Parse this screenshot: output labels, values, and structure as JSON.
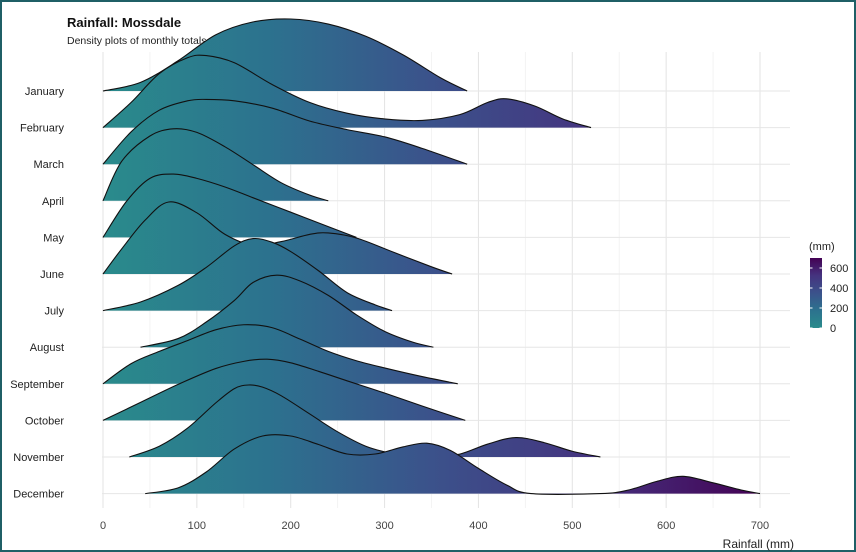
{
  "chart_data": {
    "type": "ridgeline",
    "title": "Rainfall: Mossdale",
    "subtitle": "Density plots of monthly totals, 2012-2020",
    "xlabel": "Rainfall (mm)",
    "ylabel": "",
    "xlim": [
      0,
      700
    ],
    "x_ticks": [
      0,
      100,
      200,
      300,
      400,
      500,
      600,
      700
    ],
    "grid": true,
    "legend": {
      "title": "(mm)",
      "placement": "right",
      "ticks": [
        600,
        400,
        200,
        0
      ],
      "color_range": [
        0,
        700
      ],
      "colors": [
        "#2a8b8c",
        "#2c728e",
        "#3b528b",
        "#45337f",
        "#440154"
      ]
    },
    "categories": [
      "January",
      "February",
      "March",
      "April",
      "May",
      "June",
      "July",
      "August",
      "September",
      "October",
      "November",
      "December"
    ],
    "series": [
      {
        "name": "January",
        "x": [
          0,
          40,
          80,
          120,
          160,
          200,
          240,
          280,
          320,
          360,
          388
        ],
        "density": [
          0.0,
          0.12,
          0.42,
          0.78,
          0.96,
          1.0,
          0.93,
          0.76,
          0.5,
          0.18,
          0.0
        ]
      },
      {
        "name": "February",
        "x": [
          0,
          30,
          60,
          90,
          110,
          140,
          180,
          220,
          260,
          300,
          340,
          380,
          410,
          430,
          460,
          490,
          520
        ],
        "density": [
          0.0,
          0.35,
          0.75,
          0.97,
          1.0,
          0.9,
          0.6,
          0.35,
          0.2,
          0.12,
          0.1,
          0.18,
          0.35,
          0.4,
          0.3,
          0.12,
          0.0
        ]
      },
      {
        "name": "March",
        "x": [
          0,
          30,
          60,
          90,
          110,
          140,
          180,
          220,
          260,
          300,
          340,
          388
        ],
        "density": [
          0.0,
          0.45,
          0.75,
          0.88,
          0.9,
          0.88,
          0.78,
          0.6,
          0.48,
          0.38,
          0.22,
          0.0
        ]
      },
      {
        "name": "April",
        "x": [
          0,
          20,
          50,
          75,
          100,
          130,
          160,
          190,
          220,
          240
        ],
        "density": [
          0.0,
          0.55,
          0.9,
          1.0,
          0.95,
          0.75,
          0.5,
          0.25,
          0.08,
          0.0
        ]
      },
      {
        "name": "May",
        "x": [
          0,
          25,
          50,
          75,
          100,
          130,
          160,
          200,
          240,
          270
        ],
        "density": [
          0.0,
          0.5,
          0.82,
          0.88,
          0.82,
          0.7,
          0.55,
          0.35,
          0.15,
          0.0
        ]
      },
      {
        "name": "June",
        "x": [
          0,
          20,
          45,
          70,
          100,
          130,
          160,
          190,
          220,
          240,
          270,
          310,
          350,
          372
        ],
        "density": [
          0.0,
          0.35,
          0.75,
          1.0,
          0.85,
          0.55,
          0.4,
          0.45,
          0.55,
          0.57,
          0.5,
          0.3,
          0.1,
          0.0
        ]
      },
      {
        "name": "July",
        "x": [
          0,
          40,
          80,
          110,
          140,
          160,
          180,
          200,
          230,
          260,
          290,
          308
        ],
        "density": [
          0.0,
          0.12,
          0.35,
          0.6,
          0.9,
          1.0,
          0.95,
          0.82,
          0.55,
          0.25,
          0.08,
          0.0
        ]
      },
      {
        "name": "August",
        "x": [
          40,
          80,
          110,
          140,
          160,
          185,
          210,
          240,
          270,
          300,
          330,
          352
        ],
        "density": [
          0.0,
          0.12,
          0.35,
          0.65,
          0.9,
          1.0,
          0.92,
          0.72,
          0.45,
          0.22,
          0.07,
          0.0
        ]
      },
      {
        "name": "September",
        "x": [
          0,
          30,
          60,
          90,
          120,
          150,
          180,
          210,
          240,
          270,
          300,
          340,
          378
        ],
        "density": [
          0.0,
          0.28,
          0.45,
          0.6,
          0.75,
          0.82,
          0.78,
          0.62,
          0.45,
          0.32,
          0.22,
          0.1,
          0.0
        ]
      },
      {
        "name": "October",
        "x": [
          0,
          40,
          80,
          120,
          150,
          175,
          200,
          230,
          260,
          300,
          340,
          386
        ],
        "density": [
          0.0,
          0.25,
          0.5,
          0.72,
          0.82,
          0.85,
          0.8,
          0.68,
          0.55,
          0.38,
          0.2,
          0.0
        ]
      },
      {
        "name": "November",
        "x": [
          28,
          60,
          90,
          120,
          140,
          155,
          170,
          190,
          220,
          250,
          280,
          310,
          330,
          350,
          380,
          410,
          440,
          470,
          500,
          530
        ],
        "density": [
          0.0,
          0.15,
          0.4,
          0.75,
          0.95,
          1.0,
          0.97,
          0.85,
          0.6,
          0.35,
          0.15,
          0.04,
          0.0,
          0.0,
          0.04,
          0.18,
          0.27,
          0.2,
          0.08,
          0.0
        ]
      },
      {
        "name": "December",
        "x": [
          45,
          80,
          110,
          140,
          170,
          200,
          230,
          260,
          290,
          320,
          345,
          370,
          400,
          430,
          456,
          530,
          560,
          590,
          618,
          650,
          680,
          700
        ],
        "density": [
          0.0,
          0.08,
          0.3,
          0.62,
          0.8,
          0.8,
          0.68,
          0.55,
          0.55,
          0.65,
          0.7,
          0.6,
          0.35,
          0.12,
          0.0,
          0.0,
          0.05,
          0.17,
          0.24,
          0.15,
          0.05,
          0.0
        ]
      }
    ]
  }
}
